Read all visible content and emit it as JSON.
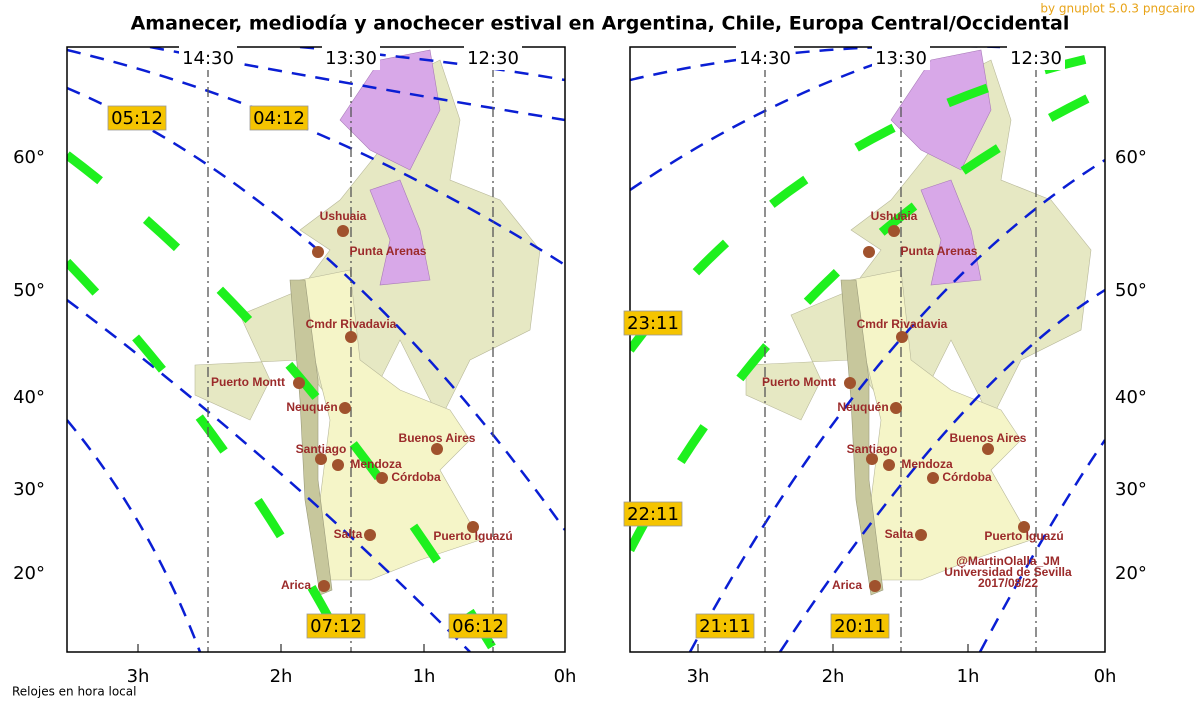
{
  "title": "Amanecer, mediodía y anochecer estival en Argentina, Chile, Europa Central/Occidental",
  "credit": "by gnuplot 5.0.3 pngcairo",
  "footer": "Relojes en hora local",
  "panels": [
    {
      "x_labels": [
        "3h",
        "2h",
        "1h",
        "0h"
      ],
      "y_labels": [
        "60°",
        "50°",
        "40°",
        "30°",
        "20°"
      ],
      "clock_labels": [
        "14:30",
        "13:30",
        "12:30"
      ],
      "time_labels": [
        "05:12",
        "04:12",
        "07:12",
        "06:12"
      ],
      "cities": [
        "Ushuaia",
        "Punta Arenas",
        "Cmdr Rivadavia",
        "Puerto Montt",
        "Neuquén",
        "Santiago",
        "Mendoza",
        "Córdoba",
        "Buenos Aires",
        "Salta",
        "Puerto Iguazú",
        "Arica"
      ]
    },
    {
      "x_labels": [
        "3h",
        "2h",
        "1h",
        "0h"
      ],
      "y_labels": [
        "60°",
        "50°",
        "40°",
        "30°",
        "20°"
      ],
      "clock_labels": [
        "14:30",
        "13:30",
        "12:30"
      ],
      "time_labels": [
        "23:11",
        "22:11",
        "21:11",
        "20:11"
      ],
      "cities": [
        "Ushuaia",
        "Punta Arenas",
        "Cmdr Rivadavia",
        "Puerto Montt",
        "Neuquén",
        "Santiago",
        "Mendoza",
        "Córdoba",
        "Buenos Aires",
        "Salta",
        "Puerto Iguazú",
        "Arica"
      ],
      "note": [
        "@MartinOlalla_JM",
        "Universidad de Sevilla",
        "2017/08/22"
      ]
    }
  ]
}
